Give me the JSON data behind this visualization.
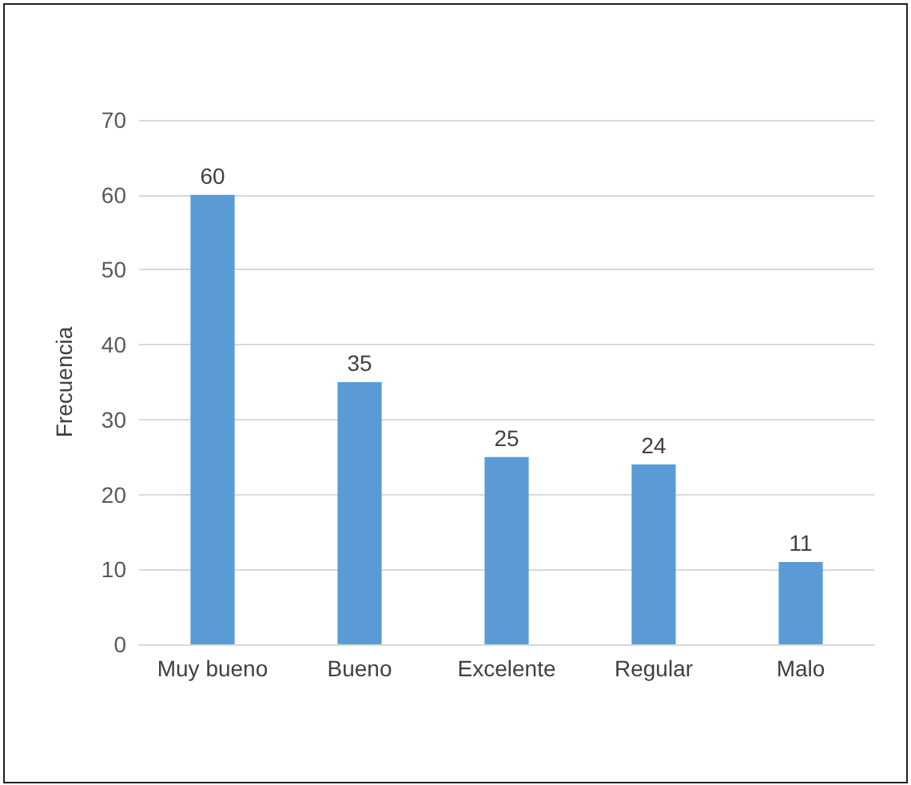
{
  "chart_data": {
    "type": "bar",
    "ylabel": "Frecuencia",
    "categories": [
      "Muy bueno",
      "Bueno",
      "Excelente",
      "Regular",
      "Malo"
    ],
    "values": [
      60,
      35,
      25,
      24,
      11
    ],
    "color": "#5b9bd5",
    "ylim": [
      0,
      70
    ],
    "yticks": [
      0,
      10,
      20,
      30,
      40,
      50,
      60,
      70
    ],
    "grid": "y",
    "data_labels": true
  }
}
